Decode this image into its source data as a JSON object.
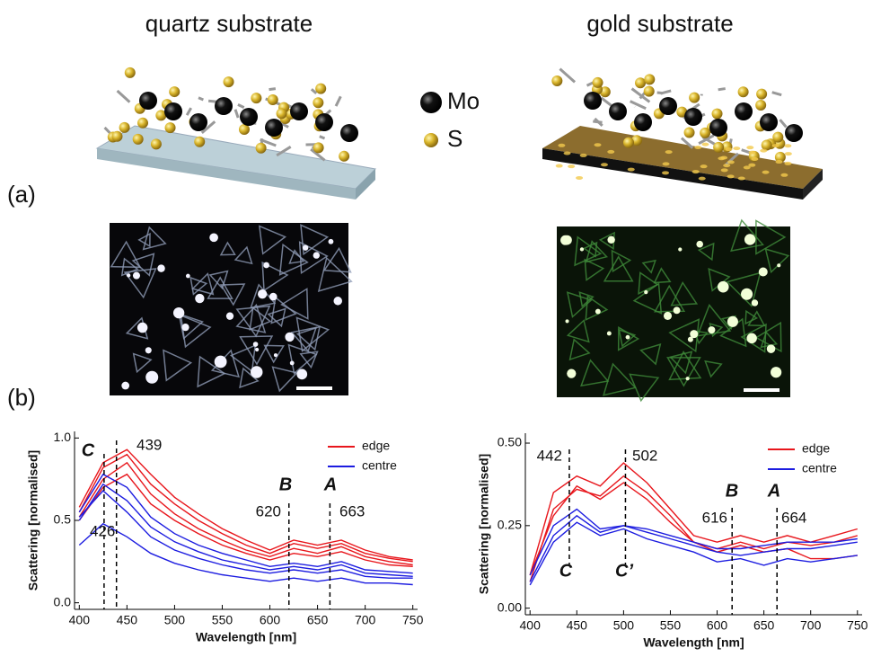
{
  "header": {
    "left_title": "quartz substrate",
    "right_title": "gold substrate"
  },
  "atoms": [
    "Mo",
    "S"
  ],
  "panels": [
    "(a)",
    "(b)"
  ],
  "chart_data": [
    {
      "type": "line",
      "xlabel": "Wavelength [nm]",
      "ylabel": "Scattering [normalised]",
      "x": [
        400,
        425,
        450,
        475,
        500,
        525,
        550,
        575,
        600,
        625,
        650,
        675,
        700,
        725,
        750
      ],
      "series": [
        {
          "name": "edge",
          "color": "#e8161c",
          "values": [
            [
              0.55,
              0.82,
              0.9,
              0.72,
              0.6,
              0.5,
              0.42,
              0.35,
              0.3,
              0.36,
              0.33,
              0.36,
              0.3,
              0.27,
              0.25
            ],
            [
              0.52,
              0.75,
              0.85,
              0.66,
              0.54,
              0.45,
              0.38,
              0.32,
              0.28,
              0.33,
              0.3,
              0.34,
              0.28,
              0.25,
              0.23
            ],
            [
              0.5,
              0.7,
              0.78,
              0.6,
              0.5,
              0.42,
              0.35,
              0.3,
              0.26,
              0.3,
              0.28,
              0.31,
              0.26,
              0.23,
              0.22
            ],
            [
              0.58,
              0.85,
              0.93,
              0.78,
              0.64,
              0.54,
              0.45,
              0.38,
              0.32,
              0.38,
              0.35,
              0.38,
              0.32,
              0.28,
              0.26
            ]
          ]
        },
        {
          "name": "centre",
          "color": "#1c1ce0",
          "values": [
            [
              0.55,
              0.78,
              0.7,
              0.52,
              0.42,
              0.35,
              0.3,
              0.26,
              0.22,
              0.24,
              0.22,
              0.25,
              0.2,
              0.19,
              0.18
            ],
            [
              0.5,
              0.72,
              0.62,
              0.46,
              0.37,
              0.31,
              0.26,
              0.23,
              0.2,
              0.22,
              0.2,
              0.23,
              0.18,
              0.17,
              0.16
            ],
            [
              0.52,
              0.68,
              0.55,
              0.4,
              0.32,
              0.27,
              0.23,
              0.2,
              0.18,
              0.2,
              0.18,
              0.2,
              0.16,
              0.15,
              0.15
            ],
            [
              0.35,
              0.48,
              0.4,
              0.3,
              0.24,
              0.2,
              0.17,
              0.15,
              0.13,
              0.15,
              0.13,
              0.15,
              0.12,
              0.12,
              0.11
            ]
          ]
        }
      ],
      "xlim": [
        395,
        755
      ],
      "xticks": [
        400,
        450,
        500,
        550,
        600,
        650,
        700,
        750
      ],
      "ylim": [
        -0.04,
        1.04
      ],
      "yticks": [
        {
          "value": 0,
          "label": "0.0"
        },
        {
          "value": 0.5,
          "label": "0.5"
        },
        {
          "value": 1,
          "label": "1.0"
        }
      ],
      "legend": "upper right",
      "peaks": [
        {
          "x": 426,
          "letter": "C"
        },
        {
          "x": 439
        },
        {
          "x": 620,
          "letter": "B"
        },
        {
          "x": 663,
          "letter": "A"
        }
      ]
    },
    {
      "type": "line",
      "xlabel": "Wavelength [nm]",
      "ylabel": "Scattering [normalised]",
      "x": [
        400,
        425,
        450,
        475,
        500,
        525,
        550,
        575,
        600,
        625,
        650,
        675,
        700,
        725,
        750
      ],
      "series": [
        {
          "name": "edge",
          "color": "#e8161c",
          "values": [
            [
              0.1,
              0.35,
              0.4,
              0.37,
              0.44,
              0.38,
              0.3,
              0.22,
              0.2,
              0.22,
              0.2,
              0.22,
              0.2,
              0.22,
              0.24
            ],
            [
              0.08,
              0.3,
              0.36,
              0.34,
              0.4,
              0.35,
              0.28,
              0.2,
              0.18,
              0.2,
              0.18,
              0.2,
              0.19,
              0.2,
              0.22
            ],
            [
              0.1,
              0.28,
              0.37,
              0.33,
              0.38,
              0.33,
              0.26,
              0.2,
              0.17,
              0.19,
              0.17,
              0.18,
              0.15,
              0.15,
              0.16
            ]
          ]
        },
        {
          "name": "centre",
          "color": "#1c1ce0",
          "values": [
            [
              0.1,
              0.25,
              0.3,
              0.24,
              0.25,
              0.24,
              0.22,
              0.2,
              0.18,
              0.18,
              0.19,
              0.2,
              0.2,
              0.2,
              0.21
            ],
            [
              0.08,
              0.22,
              0.28,
              0.23,
              0.25,
              0.23,
              0.21,
              0.19,
              0.17,
              0.16,
              0.17,
              0.18,
              0.18,
              0.19,
              0.2
            ],
            [
              0.07,
              0.2,
              0.26,
              0.22,
              0.24,
              0.21,
              0.19,
              0.17,
              0.14,
              0.15,
              0.13,
              0.15,
              0.14,
              0.15,
              0.16
            ]
          ]
        }
      ],
      "xlim": [
        395,
        755
      ],
      "xticks": [
        400,
        450,
        500,
        550,
        600,
        650,
        700,
        750
      ],
      "ylim": [
        -0.02,
        0.53
      ],
      "yticks": [
        {
          "value": 0,
          "label": "0.00"
        },
        {
          "value": 0.25,
          "label": "0.25"
        },
        {
          "value": 0.5,
          "label": "0.50"
        }
      ],
      "legend": "upper right",
      "peaks": [
        {
          "x": 442,
          "letter": "C"
        },
        {
          "x": 502,
          "letter": "C’"
        },
        {
          "x": 616,
          "letter": "B"
        },
        {
          "x": 664,
          "letter": "A"
        }
      ]
    }
  ]
}
